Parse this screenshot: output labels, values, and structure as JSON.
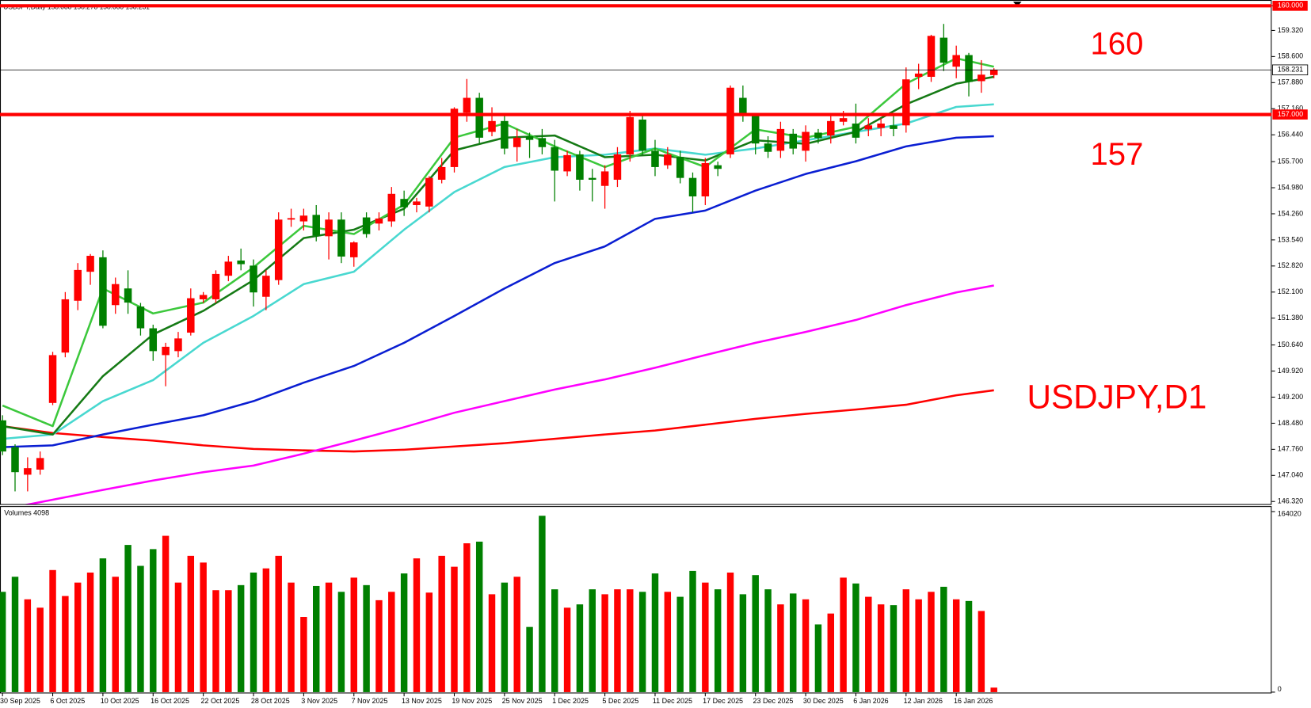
{
  "chart_data": {
    "type": "candlestick",
    "title": "USDJPY,Daily 158.088 158.278 158.000 158.231",
    "categories": [
      "30 Sep 2025",
      null,
      null,
      null,
      "6 Oct 2025",
      null,
      null,
      null,
      "10 Oct 2025",
      null,
      null,
      null,
      "16 Oct 2025",
      null,
      null,
      null,
      "22 Oct 2025",
      null,
      null,
      null,
      "28 Oct 2025",
      null,
      null,
      null,
      "3 Nov 2025",
      null,
      null,
      null,
      "7 Nov 2025",
      null,
      null,
      null,
      "13 Nov 2025",
      null,
      null,
      null,
      "19 Nov 2025",
      null,
      null,
      null,
      "25 Nov 2025",
      null,
      null,
      null,
      "1 Dec 2025",
      null,
      null,
      null,
      "5 Dec 2025",
      null,
      null,
      null,
      "11 Dec 2025",
      null,
      null,
      null,
      "17 Dec 2025",
      null,
      null,
      null,
      "23 Dec 2025",
      null,
      null,
      null,
      "30 Dec 2025",
      null,
      null,
      null,
      "6 Jan 2026",
      null,
      null,
      null,
      "12 Jan 2026",
      null,
      null,
      null,
      "16 Jan 2026",
      null,
      null,
      null
    ],
    "open": [
      148.56,
      147.82,
      147.06,
      147.2,
      149.04,
      150.43,
      151.86,
      152.66,
      153.06,
      151.74,
      152.2,
      151.7,
      151.1,
      150.36,
      150.47,
      150.98,
      151.9,
      151.9,
      152.55,
      152.97,
      152.83,
      151.97,
      152.43,
      154.1,
      154.05,
      154.23,
      153.64,
      154.1,
      153.06,
      154.16,
      153.99,
      154.05,
      154.67,
      154.5,
      154.46,
      155.2,
      155.55,
      157.05,
      157.46,
      156.52,
      156.82,
      156.1,
      156.4,
      156.35,
      156.1,
      155.43,
      155.9,
      155.25,
      155.03,
      155.2,
      155.9,
      156.86,
      156.0,
      155.6,
      155.83,
      155.25,
      154.74,
      155.6,
      155.9,
      157.46,
      157.0,
      156.2,
      156.0,
      156.47,
      156.0,
      156.5,
      156.42,
      156.8,
      156.75,
      156.59,
      156.63,
      156.7,
      156.7,
      158.04,
      158.04,
      159.12,
      158.32,
      158.64,
      157.92,
      158.088
    ],
    "high": [
      148.7,
      147.9,
      147.54,
      147.7,
      150.45,
      152.1,
      152.9,
      153.15,
      153.25,
      152.5,
      152.7,
      151.8,
      151.2,
      150.7,
      151.0,
      152.2,
      152.1,
      152.7,
      153.1,
      153.3,
      153.0,
      152.7,
      154.3,
      154.4,
      154.4,
      154.5,
      154.3,
      154.3,
      153.5,
      154.3,
      154.3,
      155.0,
      154.9,
      154.7,
      155.3,
      155.8,
      157.2,
      157.98,
      157.6,
      157.2,
      157.0,
      156.6,
      156.5,
      156.6,
      156.3,
      156.0,
      156.0,
      155.5,
      155.6,
      156.1,
      157.1,
      157.0,
      156.3,
      156.1,
      156.0,
      155.4,
      155.8,
      155.7,
      157.8,
      157.8,
      157.0,
      156.4,
      156.8,
      156.6,
      156.7,
      156.6,
      157.0,
      157.1,
      157.3,
      156.9,
      156.9,
      157.0,
      158.3,
      158.4,
      159.2,
      159.5,
      158.9,
      158.7,
      158.5,
      158.278
    ],
    "low": [
      147.6,
      146.6,
      146.6,
      147.06,
      148.98,
      150.3,
      151.6,
      152.3,
      151.1,
      151.5,
      151.5,
      150.9,
      150.2,
      149.5,
      150.3,
      150.9,
      151.8,
      151.8,
      152.4,
      152.7,
      151.7,
      151.6,
      152.3,
      153.9,
      153.8,
      153.5,
      153.0,
      152.9,
      152.8,
      153.6,
      153.8,
      153.9,
      154.2,
      154.3,
      154.3,
      155.1,
      155.4,
      156.8,
      156.2,
      156.4,
      155.9,
      155.7,
      155.8,
      155.9,
      154.6,
      155.3,
      154.9,
      154.6,
      154.4,
      155.0,
      155.7,
      155.9,
      155.3,
      155.5,
      155.1,
      154.3,
      154.5,
      155.3,
      155.8,
      156.8,
      155.9,
      155.8,
      155.8,
      155.9,
      155.7,
      156.2,
      156.2,
      156.7,
      156.2,
      156.4,
      156.4,
      156.4,
      156.5,
      157.7,
      157.9,
      158.2,
      158.0,
      157.5,
      157.6,
      158.0
    ],
    "close": [
      147.7,
      147.13,
      147.24,
      147.52,
      150.36,
      151.9,
      152.71,
      153.1,
      151.17,
      152.32,
      151.81,
      151.1,
      150.47,
      150.59,
      150.82,
      151.93,
      152.02,
      152.6,
      152.94,
      152.87,
      152.09,
      152.55,
      154.1,
      154.14,
      154.21,
      153.66,
      154.1,
      153.08,
      153.47,
      153.7,
      154.13,
      154.81,
      154.44,
      154.6,
      155.25,
      155.55,
      157.16,
      157.46,
      156.36,
      156.82,
      156.06,
      156.36,
      156.3,
      156.1,
      155.45,
      155.88,
      155.2,
      155.2,
      155.43,
      155.9,
      156.93,
      156.0,
      155.55,
      155.9,
      155.25,
      154.74,
      155.66,
      155.5,
      157.74,
      157.0,
      156.2,
      155.97,
      156.6,
      156.06,
      156.52,
      156.35,
      156.82,
      156.9,
      156.36,
      156.7,
      156.75,
      156.6,
      157.97,
      158.13,
      159.17,
      158.43,
      158.64,
      157.9,
      158.1,
      158.231
    ],
    "up_color": "#ff0000",
    "down_color": "#008000",
    "ylim": [
      146.25,
      160.16
    ],
    "yticks": [
      {
        "value": 160,
        "label": "160.000"
      },
      {
        "value": 159.32,
        "label": "159.320"
      },
      {
        "value": 158.6,
        "label": "158.600"
      },
      {
        "value": 157.88,
        "label": "157.880"
      },
      {
        "value": 157.16,
        "label": "157.160"
      },
      {
        "value": 156.44,
        "label": "156.440"
      },
      {
        "value": 155.7,
        "label": "155.700"
      },
      {
        "value": 154.98,
        "label": "154.980"
      },
      {
        "value": 154.26,
        "label": "154.260"
      },
      {
        "value": 153.54,
        "label": "153.540"
      },
      {
        "value": 152.82,
        "label": "152.820"
      },
      {
        "value": 152.1,
        "label": "152.100"
      },
      {
        "value": 151.38,
        "label": "151.380"
      },
      {
        "value": 150.64,
        "label": "150.640"
      },
      {
        "value": 149.92,
        "label": "149.920"
      },
      {
        "value": 149.2,
        "label": "149.200"
      },
      {
        "value": 148.48,
        "label": "148.480"
      },
      {
        "value": 147.76,
        "label": "147.760"
      },
      {
        "value": 147.04,
        "label": "147.040"
      },
      {
        "value": 146.32,
        "label": "146.320"
      }
    ],
    "overlay_index": [
      0,
      4,
      8,
      12,
      16,
      20,
      24,
      28,
      32,
      36,
      40,
      44,
      48,
      52,
      56,
      60,
      64,
      68,
      72,
      76,
      79
    ],
    "overlays": [
      {
        "color": "#ff0000",
        "values": [
          148.4,
          148.21,
          148.1,
          148.0,
          147.87,
          147.77,
          147.73,
          147.7,
          147.75,
          147.84,
          147.93,
          148.05,
          148.17,
          148.28,
          148.44,
          148.6,
          148.74,
          148.86,
          148.99,
          149.25,
          149.39
        ]
      },
      {
        "color": "#ff00ff",
        "values": [
          146.1,
          146.37,
          146.64,
          146.9,
          147.13,
          147.31,
          147.64,
          148.0,
          148.37,
          148.77,
          149.09,
          149.41,
          149.69,
          150.01,
          150.36,
          150.7,
          151.0,
          151.33,
          151.74,
          152.09,
          152.28
        ]
      },
      {
        "color": "#0a1ed2",
        "values": [
          147.82,
          147.87,
          148.17,
          148.44,
          148.7,
          149.09,
          149.6,
          150.06,
          150.7,
          151.44,
          152.2,
          152.9,
          153.36,
          154.12,
          154.35,
          154.9,
          155.36,
          155.71,
          156.12,
          156.36,
          156.4
        ]
      },
      {
        "color": "#48d8d0",
        "values": [
          148.05,
          148.17,
          149.09,
          149.67,
          150.7,
          151.44,
          152.32,
          152.66,
          153.82,
          154.86,
          155.55,
          155.82,
          155.89,
          156.06,
          155.89,
          156.06,
          156.29,
          156.52,
          156.75,
          157.21,
          157.28
        ]
      },
      {
        "color": "#157a15",
        "values": [
          148.4,
          148.17,
          149.78,
          150.93,
          151.58,
          152.43,
          153.59,
          153.82,
          154.4,
          156.01,
          156.36,
          156.42,
          155.82,
          155.89,
          155.73,
          156.29,
          156.19,
          156.52,
          157.28,
          157.85,
          158.04
        ]
      },
      {
        "color": "#3cc83c",
        "values": [
          148.97,
          148.4,
          152.2,
          151.51,
          151.81,
          152.78,
          153.93,
          153.7,
          154.51,
          156.36,
          156.75,
          156.12,
          155.55,
          156.06,
          155.55,
          156.59,
          156.36,
          156.66,
          157.85,
          158.55,
          158.32
        ]
      }
    ],
    "levels": [
      {
        "value": 160,
        "label": "160.000",
        "text": "160",
        "color": "#ff0000"
      },
      {
        "value": 157,
        "label": "157.000",
        "text": "157",
        "color": "#ff0000"
      }
    ],
    "current_price": {
      "value": 158.231,
      "label": "158.231"
    },
    "annotation": "USDJPY,D1",
    "volume": {
      "title": "Volumes 4098",
      "values": [
        91100,
        104800,
        84300,
        76700,
        110900,
        87300,
        99500,
        108600,
        121500,
        104800,
        133700,
        114700,
        129900,
        142000,
        99500,
        123800,
        117700,
        92600,
        92600,
        97200,
        108600,
        112400,
        123800,
        99500,
        68300,
        96400,
        99500,
        91100,
        104000,
        97200,
        83500,
        91100,
        107800,
        121500,
        90400,
        123800,
        113900,
        135200,
        136700,
        88900,
        99500,
        104800,
        59200,
        160200,
        93400,
        76700,
        79700,
        93400,
        88900,
        93400,
        93400,
        91100,
        107800,
        91100,
        86600,
        110100,
        99500,
        93400,
        108600,
        88900,
        106300,
        93400,
        79700,
        89600,
        84300,
        61500,
        71400,
        104000,
        98700,
        86600,
        79700,
        79000,
        93400,
        84300,
        91100,
        95700,
        84300,
        82800,
        73700,
        4098
      ],
      "ylim": [
        0,
        164020
      ],
      "yticks": [
        164020,
        0
      ]
    }
  }
}
